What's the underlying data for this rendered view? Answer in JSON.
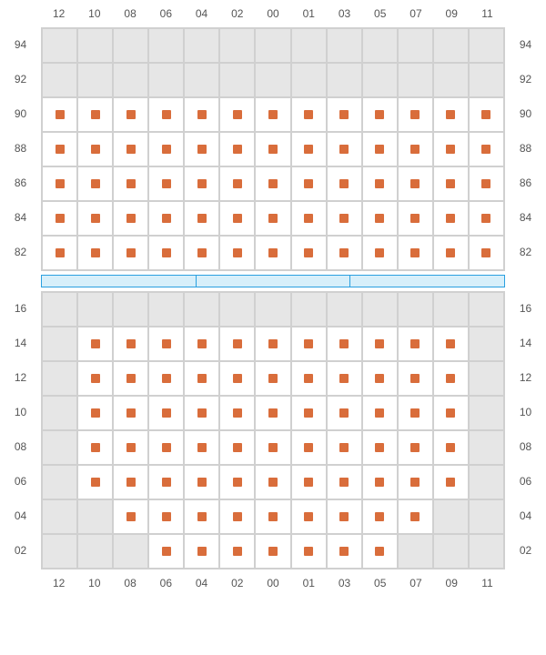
{
  "chart": {
    "type": "seating-grid",
    "columns": [
      "12",
      "10",
      "08",
      "06",
      "04",
      "02",
      "00",
      "01",
      "03",
      "05",
      "07",
      "09",
      "11"
    ],
    "marker_color": "#d96d3b",
    "seat_bg": "#ffffff",
    "empty_bg": "#e6e6e6",
    "grid_line_color": "#d0d0d0",
    "label_color": "#555555",
    "label_fontsize": 12,
    "divider": {
      "segments": 3,
      "fill": "#d7effa",
      "border": "#2aa0e0"
    },
    "top_panel": {
      "rows": [
        "94",
        "92",
        "90",
        "88",
        "86",
        "84",
        "82"
      ],
      "cells": [
        [
          0,
          0,
          0,
          0,
          0,
          0,
          0,
          0,
          0,
          0,
          0,
          0,
          0
        ],
        [
          0,
          0,
          0,
          0,
          0,
          0,
          0,
          0,
          0,
          0,
          0,
          0,
          0
        ],
        [
          1,
          1,
          1,
          1,
          1,
          1,
          1,
          1,
          1,
          1,
          1,
          1,
          1
        ],
        [
          1,
          1,
          1,
          1,
          1,
          1,
          1,
          1,
          1,
          1,
          1,
          1,
          1
        ],
        [
          1,
          1,
          1,
          1,
          1,
          1,
          1,
          1,
          1,
          1,
          1,
          1,
          1
        ],
        [
          1,
          1,
          1,
          1,
          1,
          1,
          1,
          1,
          1,
          1,
          1,
          1,
          1
        ],
        [
          1,
          1,
          1,
          1,
          1,
          1,
          1,
          1,
          1,
          1,
          1,
          1,
          1
        ]
      ]
    },
    "bottom_panel": {
      "rows": [
        "16",
        "14",
        "12",
        "10",
        "08",
        "06",
        "04",
        "02"
      ],
      "cells": [
        [
          0,
          0,
          0,
          0,
          0,
          0,
          0,
          0,
          0,
          0,
          0,
          0,
          0
        ],
        [
          0,
          1,
          1,
          1,
          1,
          1,
          1,
          1,
          1,
          1,
          1,
          1,
          0
        ],
        [
          0,
          1,
          1,
          1,
          1,
          1,
          1,
          1,
          1,
          1,
          1,
          1,
          0
        ],
        [
          0,
          1,
          1,
          1,
          1,
          1,
          1,
          1,
          1,
          1,
          1,
          1,
          0
        ],
        [
          0,
          1,
          1,
          1,
          1,
          1,
          1,
          1,
          1,
          1,
          1,
          1,
          0
        ],
        [
          0,
          1,
          1,
          1,
          1,
          1,
          1,
          1,
          1,
          1,
          1,
          1,
          0
        ],
        [
          0,
          0,
          1,
          1,
          1,
          1,
          1,
          1,
          1,
          1,
          1,
          0,
          0
        ],
        [
          0,
          0,
          0,
          1,
          1,
          1,
          1,
          1,
          1,
          1,
          0,
          0,
          0
        ]
      ]
    }
  }
}
